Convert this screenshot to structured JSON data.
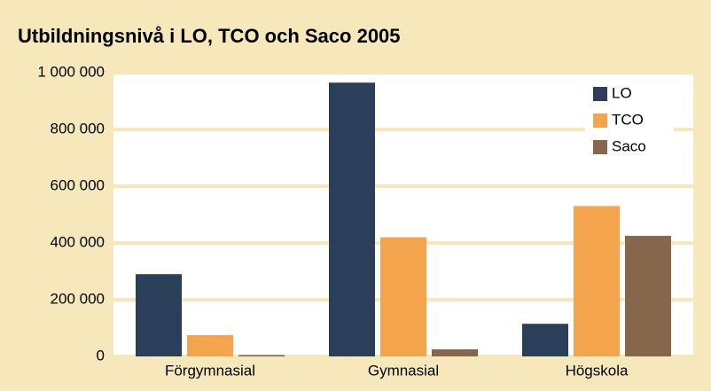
{
  "chart_data": {
    "type": "bar",
    "title": "Utbildningsnivå i LO, TCO och Saco 2005",
    "categories": [
      "Förgymnasial",
      "Gymnasial",
      "Högskola"
    ],
    "series": [
      {
        "name": "LO",
        "color": "#2b3f5a",
        "values": [
          290000,
          965000,
          115000
        ]
      },
      {
        "name": "TCO",
        "color": "#f4a44d",
        "values": [
          75000,
          420000,
          530000
        ]
      },
      {
        "name": "Saco",
        "color": "#87674b",
        "values": [
          5000,
          25000,
          425000
        ]
      }
    ],
    "ylim": [
      0,
      1000000
    ],
    "yticks": [
      0,
      {
        "value": 200000,
        "label": "200 000"
      },
      {
        "value": 400000,
        "label": "400 000"
      },
      {
        "value": 600000,
        "label": "600 000"
      },
      {
        "value": 800000,
        "label": "800 000"
      },
      {
        "value": 1000000,
        "label": "1 000 000"
      }
    ],
    "grid": true,
    "legend": "top-right"
  }
}
